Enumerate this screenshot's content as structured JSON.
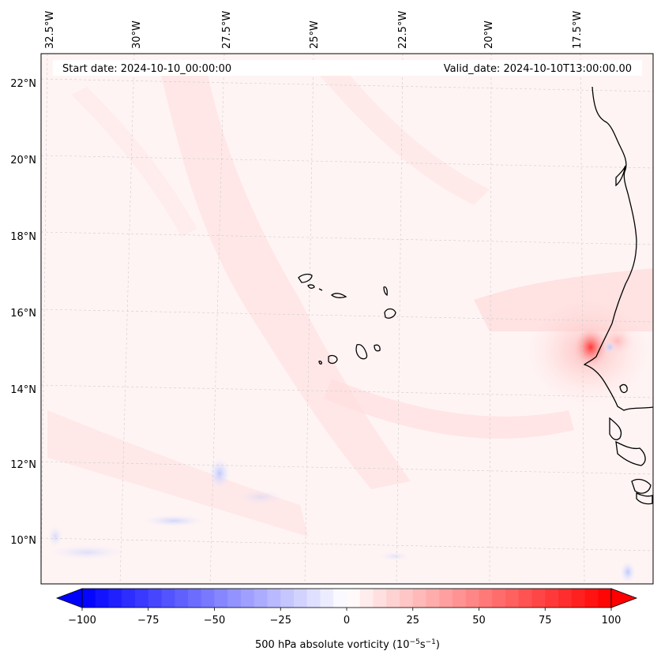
{
  "header": {
    "start_date": "Start date: 2024-10-10_00:00:00",
    "valid_date": "Valid_date: 2024-10-10T13:00:00.00"
  },
  "map": {
    "longitude_labels": [
      "32.5°W",
      "30°W",
      "27.5°W",
      "25°W",
      "22.5°W",
      "20°W",
      "17.5°W"
    ],
    "latitude_labels": [
      "22°N",
      "20°N",
      "18°N",
      "16°N",
      "14°N",
      "12°N",
      "10°N"
    ],
    "field": "500 hPa absolute vorticity",
    "colormap": "bwr",
    "gridlines": true
  },
  "colorbar": {
    "ticks": [
      "−100",
      "−75",
      "−50",
      "−25",
      "0",
      "25",
      "50",
      "75",
      "100"
    ],
    "min": -100,
    "max": 100,
    "extend": "both",
    "label_text": "500 hPa absolute vorticity (10",
    "label_exp1": "−5",
    "label_mid": "s",
    "label_exp2": "−1",
    "label_close": ")",
    "colors": {
      "low": "#0000ff",
      "mid": "#ffffff",
      "high": "#ff0000"
    }
  }
}
